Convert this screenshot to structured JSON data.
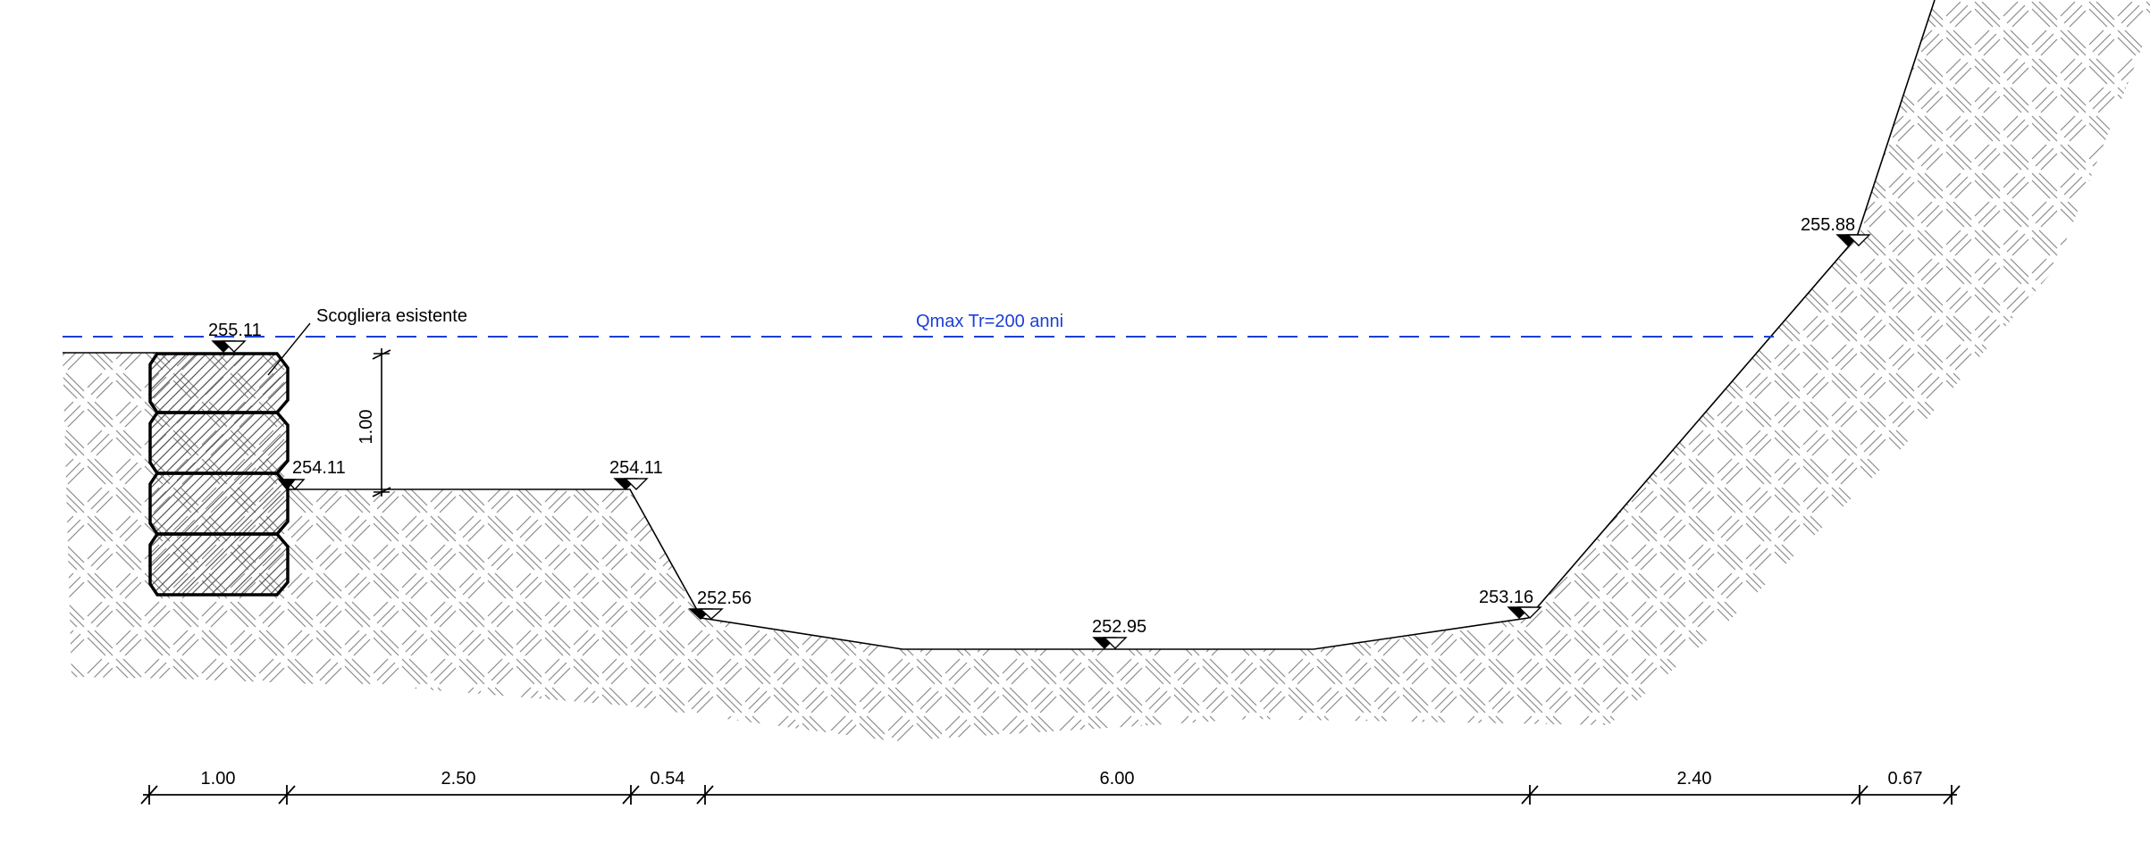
{
  "drawing": {
    "annotations": {
      "water_level": "Qmax Tr=200 anni",
      "riprap": "Scogliera esistente"
    },
    "elevations": {
      "wall_top": "255.11",
      "wall_base": "254.11",
      "terrace_edge": "254.11",
      "channel_left_toe": "252.56",
      "channel_bed": "252.95",
      "channel_right_toe": "253.16",
      "right_bank_top": "255.88"
    },
    "vertical_dimension": "1.00",
    "horizontal_dimensions": [
      "1.00",
      "2.50",
      "0.54",
      "6.00",
      "2.40",
      "0.67"
    ],
    "colors": {
      "water_line": "#1a3fd6",
      "lines": "#000000",
      "hatch": "#8a8a8a"
    }
  }
}
